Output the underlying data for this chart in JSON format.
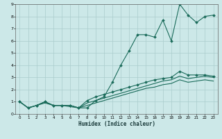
{
  "title": "",
  "xlabel": "Humidex (Indice chaleur)",
  "background_color": "#cce8e8",
  "grid_color": "#aacccc",
  "line_color": "#1a6b5a",
  "xlim": [
    -0.5,
    23.5
  ],
  "ylim": [
    0,
    9
  ],
  "xticks": [
    0,
    1,
    2,
    3,
    4,
    5,
    6,
    7,
    8,
    9,
    10,
    11,
    12,
    13,
    14,
    15,
    16,
    17,
    18,
    19,
    20,
    21,
    22,
    23
  ],
  "yticks": [
    0,
    1,
    2,
    3,
    4,
    5,
    6,
    7,
    8,
    9
  ],
  "line1_x": [
    0,
    1,
    2,
    3,
    4,
    5,
    6,
    7,
    8,
    9,
    10,
    11,
    12,
    13,
    14,
    15,
    16,
    17,
    18,
    19,
    20,
    21,
    22,
    23
  ],
  "line1_y": [
    1.0,
    0.5,
    0.7,
    1.0,
    0.7,
    0.7,
    0.7,
    0.5,
    0.5,
    1.1,
    1.4,
    2.6,
    4.0,
    5.2,
    6.5,
    6.5,
    6.3,
    7.7,
    6.0,
    9.0,
    8.1,
    7.5,
    8.0,
    8.1
  ],
  "line2_x": [
    0,
    1,
    2,
    3,
    4,
    5,
    6,
    7,
    8,
    9,
    10,
    11,
    12,
    13,
    14,
    15,
    16,
    17,
    18,
    19,
    20,
    21,
    22,
    23
  ],
  "line2_y": [
    1.0,
    0.5,
    0.7,
    1.0,
    0.7,
    0.7,
    0.7,
    0.5,
    1.1,
    1.4,
    1.6,
    1.8,
    2.0,
    2.2,
    2.4,
    2.6,
    2.8,
    2.9,
    3.0,
    3.5,
    3.2,
    3.2,
    3.2,
    3.1
  ],
  "line3_x": [
    0,
    1,
    2,
    3,
    4,
    5,
    6,
    7,
    8,
    9,
    10,
    11,
    12,
    13,
    14,
    15,
    16,
    17,
    18,
    19,
    20,
    21,
    22,
    23
  ],
  "line3_y": [
    1.0,
    0.5,
    0.7,
    1.0,
    0.7,
    0.7,
    0.7,
    0.5,
    0.9,
    1.1,
    1.3,
    1.5,
    1.7,
    1.9,
    2.1,
    2.3,
    2.5,
    2.7,
    2.8,
    3.1,
    2.9,
    3.0,
    3.1,
    3.0
  ],
  "line4_x": [
    0,
    1,
    2,
    3,
    4,
    5,
    6,
    7,
    8,
    9,
    10,
    11,
    12,
    13,
    14,
    15,
    16,
    17,
    18,
    19,
    20,
    21,
    22,
    23
  ],
  "line4_y": [
    1.0,
    0.5,
    0.7,
    0.9,
    0.7,
    0.7,
    0.6,
    0.5,
    0.7,
    0.9,
    1.1,
    1.3,
    1.5,
    1.7,
    1.9,
    2.1,
    2.2,
    2.4,
    2.5,
    2.8,
    2.6,
    2.7,
    2.8,
    2.7
  ],
  "tick_fontsize": 4.0,
  "xlabel_fontsize": 5.5,
  "marker_size": 2.0
}
